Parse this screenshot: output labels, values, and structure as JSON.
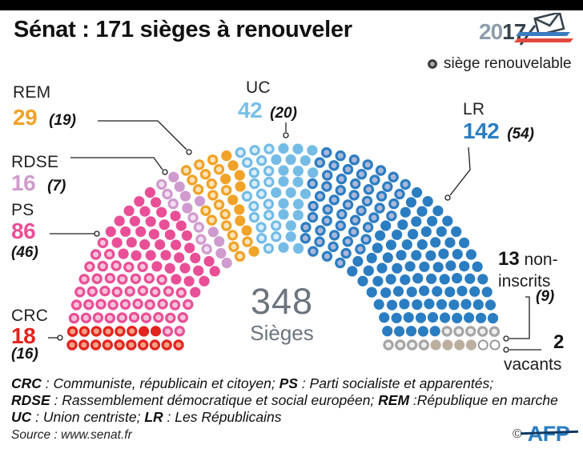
{
  "header": {
    "title": "Sénat : 171 sièges à renouveler",
    "election_badge": {
      "year_prefix": "20",
      "year_suffix": "17"
    }
  },
  "legend": {
    "label": "siège renouvelable"
  },
  "chart_data": {
    "type": "parliament",
    "title": "Sénat : 171 sièges à renouveler",
    "total_seats": 348,
    "seats_to_renew": 171,
    "center_label": {
      "number": "348",
      "text": "Sièges"
    },
    "legend": "siège renouvelable = ringed dot",
    "parties_left_to_right": [
      "CRC",
      "PS",
      "RDSE",
      "REM",
      "UC",
      "LR",
      "non-inscrits",
      "vacants"
    ],
    "parties": [
      {
        "id": "crc",
        "abbr": "CRC",
        "name": "Communiste, républicain et citoyen",
        "seats": 18,
        "renewable": 16,
        "color": "#e3231e",
        "ring_fill": "#f0a386"
      },
      {
        "id": "ps",
        "abbr": "PS",
        "name": "Parti socialiste et apparentés",
        "seats": 86,
        "renewable": 46,
        "color": "#e94f96",
        "ring_fill": "#f7c3da"
      },
      {
        "id": "rdse",
        "abbr": "RDSE",
        "name": "Rassemblement démocratique et social européen",
        "seats": 16,
        "renewable": 7,
        "color": "#cf9bce",
        "ring_fill": "#f2def2"
      },
      {
        "id": "rem",
        "abbr": "REM",
        "name": "République en marche",
        "seats": 29,
        "renewable": 19,
        "color": "#f1a228",
        "ring_fill": "#fbe3b7"
      },
      {
        "id": "uc",
        "abbr": "UC",
        "name": "Union centriste",
        "seats": 42,
        "renewable": 20,
        "color": "#74bce6",
        "ring_fill": "#dbeef9"
      },
      {
        "id": "lr",
        "abbr": "LR",
        "name": "Les Républicains",
        "seats": 142,
        "renewable": 54,
        "color": "#2b7dc2",
        "ring_fill": "#abb8da"
      },
      {
        "id": "ni",
        "abbr": "non-inscrits",
        "seats": 13,
        "renewable": 9,
        "color": "#bcafa0",
        "ring_color": "#a5a5a5",
        "ring_fill": "#f0f0ef"
      },
      {
        "id": "vacant",
        "abbr": "vacants",
        "seats": 2,
        "renewable": 0,
        "vacant": true,
        "ring_color": "#8f8f8f",
        "ring_fill": "#ffffff"
      }
    ]
  },
  "callouts": {
    "rem": {
      "label": "REM",
      "value": "29",
      "renewable": "(19)",
      "color": "#f1a228"
    },
    "rdse": {
      "label": "RDSE",
      "value": "16",
      "renewable": "(7)",
      "color": "#cf9bce"
    },
    "ps": {
      "label": "PS",
      "value": "86",
      "renewable": "(46)",
      "color": "#e94f96"
    },
    "crc": {
      "label": "CRC",
      "value": "18",
      "renewable": "(16)",
      "color": "#e3231e"
    },
    "uc": {
      "label": "UC",
      "value": "42",
      "renewable": "(20)",
      "color": "#79c0e8"
    },
    "lr": {
      "label": "LR",
      "value": "142",
      "renewable": "(54)",
      "color": "#2b7dc2"
    },
    "ni": {
      "value": "13",
      "label_line1": " non-",
      "label_line2": "inscrits",
      "renewable": "(9)"
    },
    "vacant": {
      "value": "2",
      "label": "vacants"
    }
  },
  "footnotes": [
    [
      {
        "b": "CRC"
      },
      {
        "t": " : Communiste, républicain et citoyen; "
      },
      {
        "b": "PS"
      },
      {
        "t": " : Parti socialiste et apparentés;"
      }
    ],
    [
      {
        "b": "RDSE"
      },
      {
        "t": " : Rassemblement démocratique et social européen; "
      },
      {
        "b": "REM"
      },
      {
        "t": " :République en marche"
      }
    ],
    [
      {
        "b": "UC"
      },
      {
        "t": " : Union centriste; "
      },
      {
        "b": "LR"
      },
      {
        "t": " : Les Républicains"
      }
    ]
  ],
  "source": "Source : www.senat.fr",
  "credit": {
    "symbol": "©",
    "agency": "AFP"
  }
}
